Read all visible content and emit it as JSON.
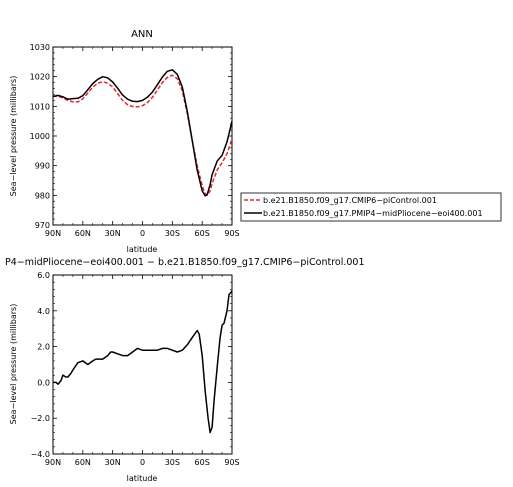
{
  "figure": {
    "top_title": "ANN",
    "bottom_title": "P4−midPliocene−eoi400.001  −  b.e21.B1850.f09_g17.CMIP6−piControl.001"
  },
  "chart_data": [
    {
      "type": "line",
      "panel": "top",
      "title": "ANN",
      "xlabel": "latitude",
      "ylabel": "Sea−level pressure (millibars)",
      "x_direction": "north-to-south",
      "xlim": [
        90,
        -90
      ],
      "ylim": [
        970,
        1030
      ],
      "xticks": [
        90,
        60,
        30,
        0,
        -30,
        -60,
        -90
      ],
      "xtick_labels": [
        "90N",
        "60N",
        "30N",
        "0",
        "30S",
        "60S",
        "90S"
      ],
      "yticks": [
        970,
        980,
        990,
        1000,
        1010,
        1020,
        1030
      ],
      "ytick_labels": [
        "970",
        "980",
        "990",
        "1000",
        "1010",
        "1020",
        "1030"
      ],
      "grid": false,
      "legend_position": "right, outside plot",
      "series": [
        {
          "name": "b.e21.B1850.f09_g17.CMIP6−piControl.001",
          "color": "#e8262b",
          "dash": "dashed",
          "x": [
            90,
            85,
            80,
            75,
            70,
            65,
            60,
            55,
            50,
            45,
            40,
            35,
            30,
            25,
            20,
            15,
            10,
            5,
            0,
            -5,
            -10,
            -15,
            -20,
            -25,
            -30,
            -35,
            -40,
            -45,
            -50,
            -55,
            -60,
            -63,
            -65,
            -68,
            -70,
            -75,
            -80,
            -85,
            -90
          ],
          "y": [
            1013.3,
            1013.5,
            1012.8,
            1012,
            1011.5,
            1011.5,
            1012.5,
            1014.5,
            1016.5,
            1017.8,
            1018.3,
            1017.8,
            1016.5,
            1014.3,
            1012,
            1010.5,
            1009.9,
            1009.8,
            1010.2,
            1011.3,
            1013,
            1015.5,
            1018,
            1019.8,
            1020.5,
            1019.3,
            1015.2,
            1007.5,
            998.5,
            990,
            983.2,
            980.5,
            980,
            981.5,
            984,
            988.5,
            991,
            994,
            999
          ]
        },
        {
          "name": "b.e21.B1850.f09_g17.PMIP4−midPliocene−eoi400.001",
          "color": "#000000",
          "dash": "solid",
          "x": [
            90,
            85,
            80,
            75,
            70,
            65,
            60,
            55,
            50,
            45,
            40,
            35,
            30,
            25,
            20,
            15,
            10,
            5,
            0,
            -5,
            -10,
            -15,
            -20,
            -25,
            -30,
            -35,
            -40,
            -45,
            -50,
            -55,
            -60,
            -63,
            -65,
            -68,
            -70,
            -75,
            -80,
            -85,
            -90
          ],
          "y": [
            1013.3,
            1013.7,
            1013.2,
            1012.4,
            1012.6,
            1012.7,
            1013.6,
            1015.6,
            1017.7,
            1019.1,
            1020,
            1019.6,
            1018.2,
            1016.1,
            1013.8,
            1012.4,
            1011.7,
            1011.6,
            1012,
            1013.1,
            1014.8,
            1017.3,
            1019.9,
            1021.8,
            1022.3,
            1020.8,
            1016.5,
            1008.3,
            998.5,
            988.5,
            981.5,
            979.8,
            980.2,
            983.5,
            987,
            991.5,
            993.5,
            998,
            1005
          ]
        }
      ]
    },
    {
      "type": "line",
      "panel": "bottom",
      "title": "P4−midPliocene−eoi400.001  −  b.e21.B1850.f09_g17.CMIP6−piControl.001",
      "xlabel": "latitude",
      "ylabel": "Sea−level pressure (millibars)",
      "x_direction": "north-to-south",
      "xlim": [
        90,
        -90
      ],
      "ylim": [
        -4,
        6
      ],
      "xticks": [
        90,
        60,
        30,
        0,
        -30,
        -60,
        -90
      ],
      "xtick_labels": [
        "90N",
        "60N",
        "30N",
        "0",
        "30S",
        "60S",
        "90S"
      ],
      "yticks": [
        -4,
        -2,
        0,
        2,
        4,
        6
      ],
      "ytick_labels": [
        "−4.0",
        "−2.0",
        "0.0",
        "2.0",
        "4.0",
        "6.0"
      ],
      "grid": false,
      "series": [
        {
          "color": "#000000",
          "dash": "solid",
          "x": [
            90,
            87,
            85,
            82,
            80,
            77,
            75,
            72,
            70,
            65,
            60,
            55,
            50,
            47,
            45,
            40,
            35,
            32,
            30,
            25,
            20,
            15,
            10,
            5,
            0,
            -5,
            -10,
            -15,
            -20,
            -25,
            -30,
            -35,
            -40,
            -45,
            -50,
            -55,
            -57,
            -60,
            -63,
            -66,
            -68,
            -70,
            -72,
            -75,
            -78,
            -80,
            -82,
            -85,
            -87,
            -90
          ],
          "y": [
            0,
            0,
            -0.1,
            0.1,
            0.4,
            0.3,
            0.3,
            0.5,
            0.7,
            1.1,
            1.2,
            1.0,
            1.2,
            1.3,
            1.3,
            1.3,
            1.5,
            1.7,
            1.7,
            1.6,
            1.5,
            1.5,
            1.7,
            1.9,
            1.8,
            1.8,
            1.8,
            1.8,
            1.9,
            1.9,
            1.8,
            1.7,
            1.8,
            2.1,
            2.5,
            2.9,
            2.7,
            1.5,
            -0.5,
            -2.0,
            -2.8,
            -2.5,
            -1.0,
            0.8,
            2.5,
            3.2,
            3.3,
            4.0,
            4.9,
            5.1
          ]
        }
      ]
    }
  ]
}
